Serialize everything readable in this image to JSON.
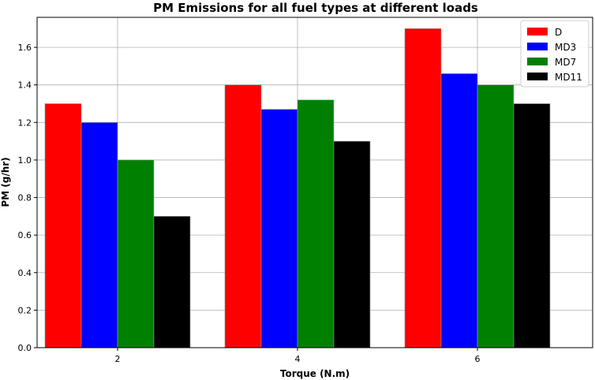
{
  "chart_data": {
    "type": "bar",
    "title": "PM Emissions for all fuel types at different loads",
    "xlabel": "Torque (N.m)",
    "ylabel": "PM (g/hr)",
    "categories": [
      "2",
      "4",
      "6"
    ],
    "ylim": [
      0,
      1.76
    ],
    "yticks": [
      "0.0",
      "0.2",
      "0.4",
      "0.6",
      "0.8",
      "1.0",
      "1.2",
      "1.4",
      "1.6"
    ],
    "grid": true,
    "legend_position": "top-right",
    "series": [
      {
        "name": "D",
        "color": "#ff0000",
        "values": [
          1.3,
          1.4,
          1.7
        ]
      },
      {
        "name": "MD3",
        "color": "#0000ff",
        "values": [
          1.2,
          1.27,
          1.46
        ]
      },
      {
        "name": "MD7",
        "color": "#008000",
        "values": [
          1.0,
          1.32,
          1.4
        ]
      },
      {
        "name": "MD11",
        "color": "#000000",
        "values": [
          0.7,
          1.1,
          1.3
        ]
      }
    ]
  }
}
